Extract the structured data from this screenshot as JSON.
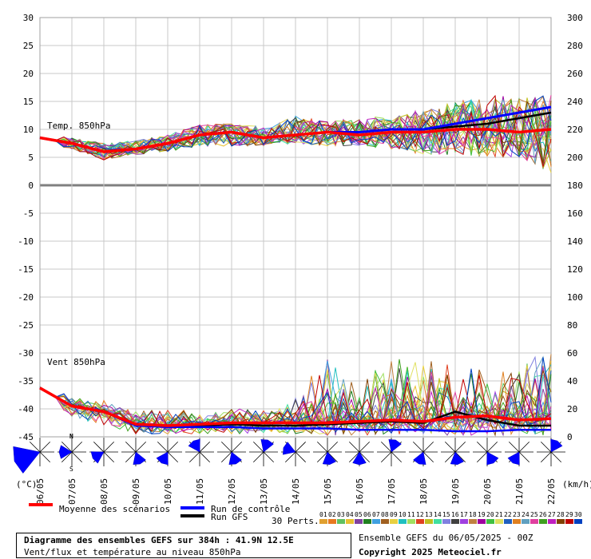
{
  "chart_data": {
    "type": "line",
    "x": [
      "06/05",
      "07/05",
      "08/05",
      "09/05",
      "10/05",
      "11/05",
      "12/05",
      "13/05",
      "14/05",
      "15/05",
      "16/05",
      "17/05",
      "18/05",
      "19/05",
      "20/05",
      "21/05",
      "22/05"
    ],
    "y_left_ticks": [
      30,
      25,
      20,
      15,
      10,
      5,
      0,
      -5,
      -10,
      -15,
      -20,
      -25,
      -30,
      -35,
      -40,
      -45
    ],
    "y_right_ticks": [
      300,
      280,
      260,
      240,
      220,
      200,
      180,
      160,
      140,
      120,
      100,
      80,
      60,
      40,
      20,
      0
    ],
    "ylim_left": [
      -45,
      30
    ],
    "ylim_right": [
      0,
      300
    ],
    "y_left_unit": "(°C)",
    "y_right_unit": "(km/h)",
    "grid": true,
    "annotations": {
      "temp_label": "Temp. 850hPa",
      "wind_label": "Vent 850hPa"
    },
    "temperature": {
      "unit": "°C",
      "mean": [
        8.5,
        7.5,
        6,
        6.5,
        7.5,
        9,
        9.5,
        8.5,
        9,
        9.5,
        9,
        9.5,
        9.5,
        10,
        10,
        9.5,
        10
      ],
      "control": [
        8.5,
        7.5,
        6,
        6.5,
        7.5,
        9,
        9.5,
        8.5,
        9,
        9.5,
        9.5,
        10,
        10,
        11,
        12,
        13,
        14
      ],
      "gfs": [
        8.5,
        7.5,
        6,
        6.5,
        7.5,
        9,
        9.5,
        8.5,
        9,
        9.5,
        9.5,
        10,
        10,
        10.5,
        11,
        12,
        13
      ],
      "spread_min": [
        7.5,
        6.5,
        4.5,
        5.5,
        6,
        7,
        7,
        7,
        7.5,
        7,
        7,
        6.5,
        5.5,
        5,
        5,
        5,
        2
      ],
      "spread_max": [
        9.5,
        8.5,
        7.5,
        8,
        9,
        11,
        11,
        10.5,
        12.5,
        11.5,
        12,
        12.5,
        13.5,
        15,
        16,
        16,
        16.5
      ]
    },
    "wind": {
      "unit": "km/h",
      "mean": [
        35,
        22,
        18,
        9,
        8,
        9,
        10,
        10,
        10,
        10,
        11,
        12,
        11,
        14,
        15,
        12,
        13
      ],
      "control": [
        35,
        22,
        18,
        8,
        7,
        7,
        7,
        6,
        6,
        6,
        5,
        5,
        5,
        4,
        4,
        5,
        5
      ],
      "gfs": [
        35,
        22,
        18,
        9,
        8,
        8,
        9,
        8,
        8,
        9,
        10,
        11,
        10,
        18,
        12,
        8,
        8
      ],
      "spread_min": [
        30,
        14,
        8,
        2,
        2,
        2,
        2,
        2,
        2,
        1,
        1,
        1,
        1,
        1,
        1,
        1,
        1
      ],
      "spread_max": [
        40,
        28,
        26,
        18,
        20,
        18,
        20,
        20,
        28,
        60,
        40,
        60,
        52,
        62,
        50,
        50,
        64
      ]
    },
    "wind_dir_deg": [
      250,
      270,
      240,
      160,
      210,
      330,
      160,
      20,
      290,
      170,
      180,
      20,
      200,
      170,
      150,
      210,
      30
    ],
    "legend": {
      "mean": "Moyenne des scénarios",
      "control": "Run de contrôle",
      "gfs": "Run GFS",
      "perts": "30 Perts.",
      "pert_ids": [
        "01",
        "02",
        "03",
        "04",
        "05",
        "06",
        "07",
        "08",
        "09",
        "10",
        "11",
        "12",
        "13",
        "14",
        "15",
        "16",
        "17",
        "18",
        "19",
        "20",
        "21",
        "22",
        "23",
        "24",
        "25",
        "26",
        "27",
        "28",
        "29",
        "30"
      ]
    },
    "colors": {
      "mean": "#ff0000",
      "control": "#0000ff",
      "gfs": "#000000",
      "perts": [
        "#e0a030",
        "#e87820",
        "#60c060",
        "#e8c030",
        "#8040a0",
        "#208020",
        "#40a0e0",
        "#a06020",
        "#e8d040",
        "#20c0c0",
        "#a0e060",
        "#e04020",
        "#c0c020",
        "#40e0a0",
        "#8080e0",
        "#404040",
        "#a040e0",
        "#c08040",
        "#a000a0",
        "#40c040",
        "#e0e060",
        "#2060c0",
        "#e08020",
        "#60a0c0",
        "#e040a0",
        "#40a020",
        "#c020c0",
        "#804000",
        "#c00000",
        "#0040c0"
      ]
    },
    "compass": {
      "n": "N",
      "s": "S"
    }
  },
  "footer": {
    "title": "Diagramme des ensembles GEFS sur 384h : 41.9N 12.5E",
    "subtitle": "Vent/flux et température au niveau 850hPa",
    "run": "Ensemble GEFS du 06/05/2025 - 00Z",
    "copyright": "Copyright 2025 Meteociel.fr"
  }
}
